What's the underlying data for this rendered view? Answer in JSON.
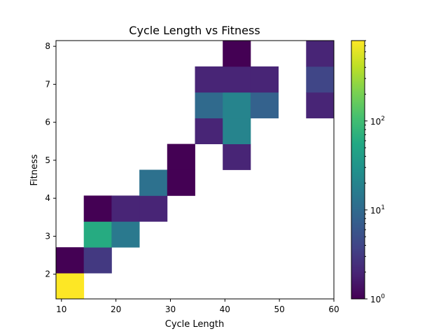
{
  "chart_data": {
    "type": "heatmap",
    "title": "Cycle Length vs Fitness",
    "xlabel": "Cycle Length",
    "ylabel": "Fitness",
    "xlim": [
      9,
      60
    ],
    "ylim": [
      1.35,
      8.15
    ],
    "x_ticks": [
      10,
      20,
      30,
      40,
      50,
      60
    ],
    "y_ticks": [
      2,
      3,
      4,
      5,
      6,
      7,
      8
    ],
    "color_scale": "log",
    "colormap": "viridis",
    "colorbar_range": [
      1,
      800
    ],
    "colorbar_ticks": [
      {
        "value": 1,
        "base": "10",
        "exp": "0"
      },
      {
        "value": 10,
        "base": "10",
        "exp": "1"
      },
      {
        "value": 100,
        "base": "10",
        "exp": "2"
      }
    ],
    "bin_edges_x": [
      9,
      14.1,
      19.2,
      24.3,
      29.4,
      34.5,
      39.6,
      44.7,
      49.8,
      54.9,
      60
    ],
    "bin_edges_y": [
      1.35,
      2.03,
      2.71,
      3.39,
      4.07,
      4.75,
      5.43,
      6.11,
      6.79,
      7.47,
      8.15
    ],
    "cells": [
      {
        "xi": 0,
        "yi": 0,
        "count": 800
      },
      {
        "xi": 0,
        "yi": 1,
        "count": 1
      },
      {
        "xi": 1,
        "yi": 1,
        "count": 3
      },
      {
        "xi": 1,
        "yi": 2,
        "count": 60
      },
      {
        "xi": 2,
        "yi": 2,
        "count": 15
      },
      {
        "xi": 1,
        "yi": 3,
        "count": 1
      },
      {
        "xi": 2,
        "yi": 3,
        "count": 2
      },
      {
        "xi": 3,
        "yi": 3,
        "count": 2
      },
      {
        "xi": 3,
        "yi": 4,
        "count": 12
      },
      {
        "xi": 4,
        "yi": 4,
        "count": 1
      },
      {
        "xi": 4,
        "yi": 5,
        "count": 1
      },
      {
        "xi": 5,
        "yi": 6,
        "count": 2
      },
      {
        "xi": 6,
        "yi": 5,
        "count": 2
      },
      {
        "xi": 6,
        "yi": 6,
        "count": 20
      },
      {
        "xi": 5,
        "yi": 7,
        "count": 10
      },
      {
        "xi": 6,
        "yi": 7,
        "count": 20
      },
      {
        "xi": 7,
        "yi": 7,
        "count": 8
      },
      {
        "xi": 5,
        "yi": 8,
        "count": 2
      },
      {
        "xi": 6,
        "yi": 8,
        "count": 2
      },
      {
        "xi": 7,
        "yi": 8,
        "count": 2
      },
      {
        "xi": 6,
        "yi": 9,
        "count": 1
      },
      {
        "xi": 9,
        "yi": 7,
        "count": 2
      },
      {
        "xi": 9,
        "yi": 8,
        "count": 4
      },
      {
        "xi": 9,
        "yi": 9,
        "count": 2
      }
    ]
  }
}
